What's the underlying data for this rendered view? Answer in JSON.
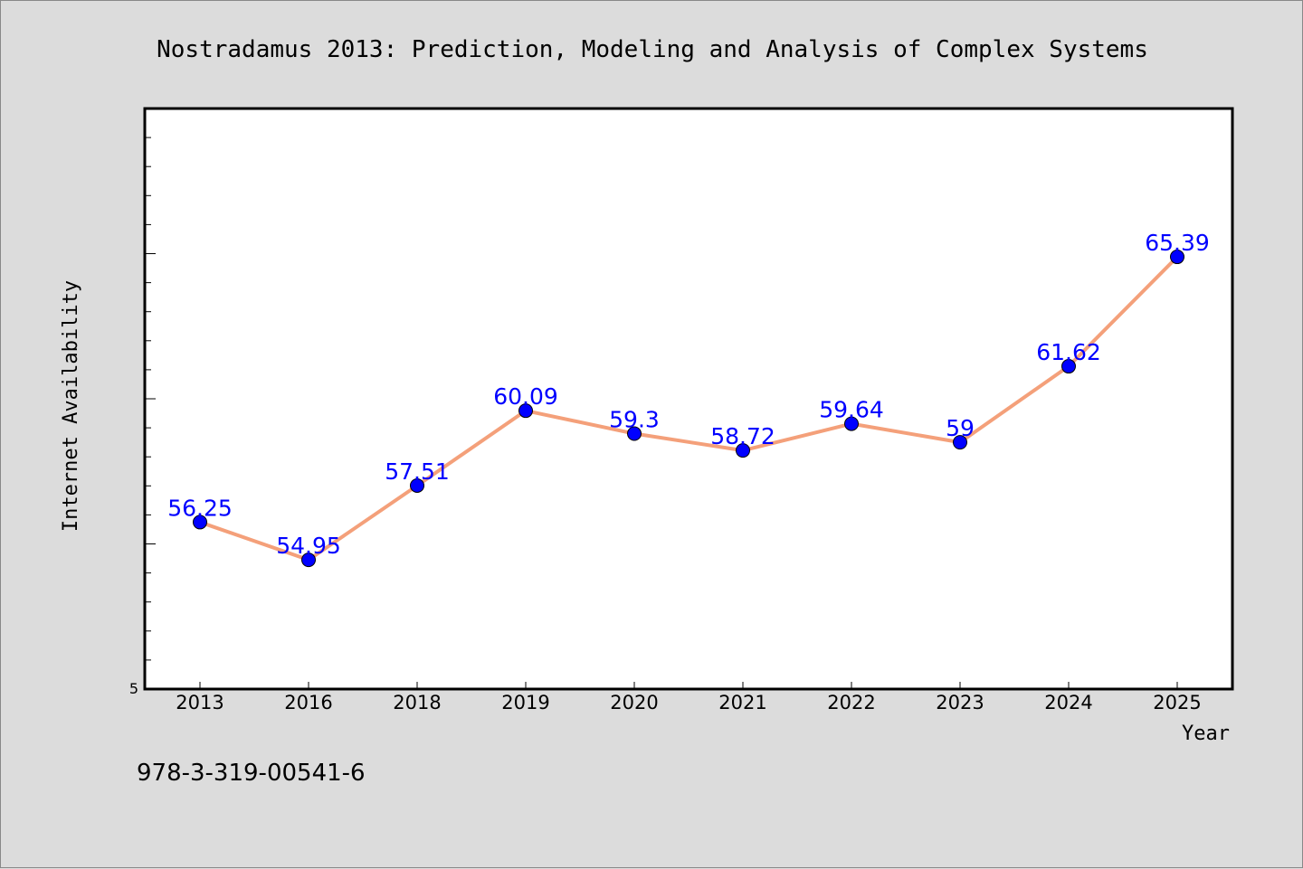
{
  "chart_data": {
    "type": "line",
    "title": "Nostradamus 2013: Prediction, Modeling and Analysis of Complex Systems",
    "xlabel": "Year",
    "ylabel": "Internet Availability",
    "categories": [
      "2013",
      "2016",
      "2018",
      "2019",
      "2020",
      "2021",
      "2022",
      "2023",
      "2024",
      "2025"
    ],
    "series": [
      {
        "values": [
          56.25,
          54.95,
          57.51,
          60.09,
          59.3,
          58.72,
          59.64,
          59,
          61.62,
          65.39
        ],
        "labels": [
          "56.25",
          "54.95",
          "57.51",
          "60.09",
          "59.3",
          "58.72",
          "59.64",
          "59",
          "61.62",
          "65.39"
        ]
      }
    ],
    "ylim": [
      50.5,
      70.5
    ],
    "yticks_labeled": [
      "5"
    ],
    "line_color": "#f4a07a",
    "marker_color": "#0000ff",
    "label_color": "#0000ff",
    "grid": false,
    "legend": "none"
  },
  "footer": {
    "isbn": "978-3-319-00541-6"
  }
}
